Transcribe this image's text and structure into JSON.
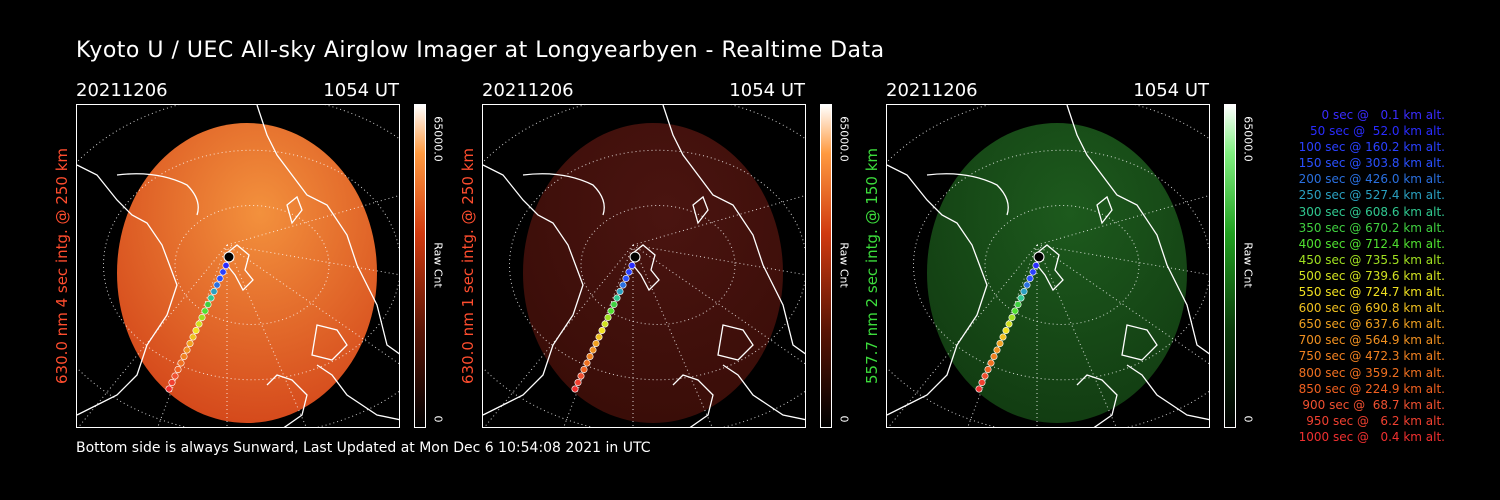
{
  "title": "Kyoto U / UEC All-sky Airglow Imager at Longyearbyen - Realtime Data",
  "footer": "Bottom side is always Sunward, Last Updated at Mon Dec  6 10:54:08 2021 in UTC",
  "colorbar": {
    "max_label": "65000.0",
    "min_label": "0",
    "unit_label": "Raw Cnt"
  },
  "panels": [
    {
      "date": "20211206",
      "time": "1054 UT",
      "label": "630.0 nm 4 sec intg. @ 250 km",
      "label_color": "#ff4d2e",
      "glow_color": "#d54a1c",
      "glow_center": "#f3913d",
      "intensity": "bright"
    },
    {
      "date": "20211206",
      "time": "1054 UT",
      "label": "630.0 nm 1 sec intg. @ 250 km",
      "label_color": "#ff4d2e",
      "glow_color": "#3a0d08",
      "glow_center": "#4a1410",
      "intensity": "dim"
    },
    {
      "date": "20211206",
      "time": "1054 UT",
      "label": "557.7 nm 2 sec intg. @ 150 km",
      "label_color": "#3cdc3c",
      "glow_color": "#123d12",
      "glow_center": "#1d5a1d",
      "intensity": "dim"
    }
  ],
  "legend": [
    {
      "text": "0 sec @   0.1 km alt.",
      "color": "#3a2cff"
    },
    {
      "text": "50 sec @  52.0 km alt.",
      "color": "#2a2cff"
    },
    {
      "text": "100 sec @ 160.2 km alt.",
      "color": "#2a40ff"
    },
    {
      "text": "150 sec @ 303.8 km alt.",
      "color": "#2a50ff"
    },
    {
      "text": "200 sec @ 426.0 km alt.",
      "color": "#2a70e0"
    },
    {
      "text": "250 sec @ 527.4 km alt.",
      "color": "#2aa0c0"
    },
    {
      "text": "300 sec @ 608.6 km alt.",
      "color": "#30c890"
    },
    {
      "text": "350 sec @ 670.2 km alt.",
      "color": "#40d040"
    },
    {
      "text": "400 sec @ 712.4 km alt.",
      "color": "#50e030"
    },
    {
      "text": "450 sec @ 735.5 km alt.",
      "color": "#a0e020"
    },
    {
      "text": "500 sec @ 739.6 km alt.",
      "color": "#d0e020"
    },
    {
      "text": "550 sec @ 724.7 km alt.",
      "color": "#f0e020"
    },
    {
      "text": "600 sec @ 690.8 km alt.",
      "color": "#f0c020"
    },
    {
      "text": "650 sec @ 637.6 km alt.",
      "color": "#f0a020"
    },
    {
      "text": "700 sec @ 564.9 km alt.",
      "color": "#f09020"
    },
    {
      "text": "750 sec @ 472.3 km alt.",
      "color": "#f08020"
    },
    {
      "text": "800 sec @ 359.2 km alt.",
      "color": "#f07020"
    },
    {
      "text": "850 sec @ 224.9 km alt.",
      "color": "#f06020"
    },
    {
      "text": "900 sec @  68.7 km alt.",
      "color": "#f05030"
    },
    {
      "text": "950 sec @   6.2 km alt.",
      "color": "#f04030"
    },
    {
      "text": "1000 sec @   0.4 km alt.",
      "color": "#f03030"
    }
  ]
}
